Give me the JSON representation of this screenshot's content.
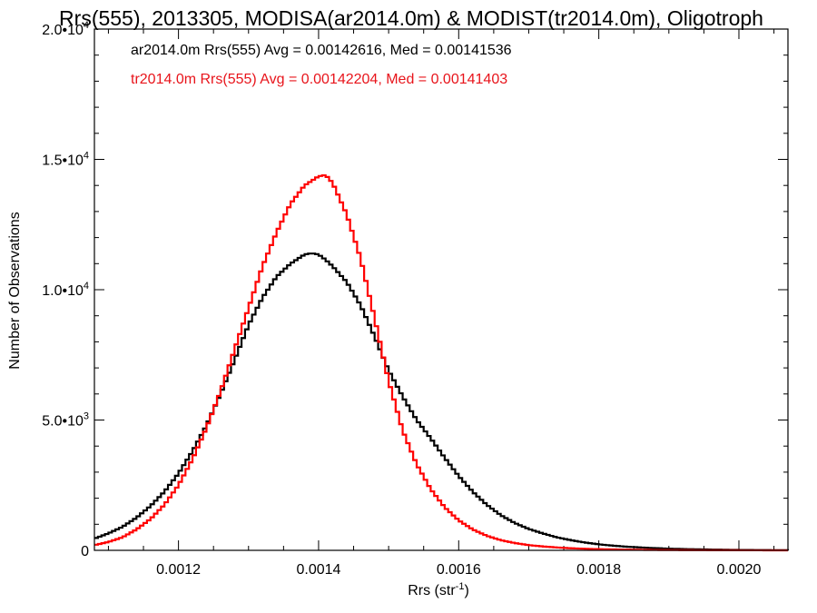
{
  "chart_data": {
    "type": "line",
    "title": "Rrs(555), 2013305, MODISA(ar2014.0m) & MODIST(tr2014.0m), Oligotroph",
    "xlabel_base": "Rrs (str",
    "xlabel_sup": "-1",
    "xlabel_close": ")",
    "ylabel": "Number of Observations",
    "xlim": [
      0.00108,
      0.00207
    ],
    "ylim": [
      0,
      20000
    ],
    "x_ticks": [
      {
        "value": 0.0012,
        "label": "0.0012"
      },
      {
        "value": 0.0014,
        "label": "0.0014"
      },
      {
        "value": 0.0016,
        "label": "0.0016"
      },
      {
        "value": 0.0018,
        "label": "0.0018"
      },
      {
        "value": 0.002,
        "label": "0.0020"
      }
    ],
    "y_ticks": [
      {
        "value": 0,
        "base": "0",
        "exp": ""
      },
      {
        "value": 5000,
        "base": "5.0•10",
        "exp": "3"
      },
      {
        "value": 10000,
        "base": "1.0•10",
        "exp": "4"
      },
      {
        "value": 15000,
        "base": "1.5•10",
        "exp": "4"
      },
      {
        "value": 20000,
        "base": "2.0•10",
        "exp": "4"
      }
    ],
    "series": [
      {
        "name": "ar2014.0m Rrs(555)",
        "color": "#000000",
        "x": [
          0.00108,
          0.0011,
          0.00112,
          0.00114,
          0.00116,
          0.00118,
          0.0012,
          0.00122,
          0.00124,
          0.00126,
          0.00128,
          0.0013,
          0.00132,
          0.00134,
          0.00136,
          0.00138,
          0.00139,
          0.0014,
          0.00141,
          0.00142,
          0.00144,
          0.00146,
          0.00148,
          0.0015,
          0.00152,
          0.00154,
          0.00156,
          0.00158,
          0.0016,
          0.00162,
          0.00164,
          0.00166,
          0.00168,
          0.0017,
          0.00172,
          0.00174,
          0.00176,
          0.00178,
          0.0018,
          0.00182,
          0.00184,
          0.00186,
          0.00188,
          0.0019,
          0.00192,
          0.00194,
          0.00196,
          0.00198,
          0.002,
          0.00202,
          0.00204,
          0.00207
        ],
        "y": [
          450,
          650,
          900,
          1250,
          1700,
          2250,
          2950,
          3800,
          4800,
          6000,
          7300,
          8650,
          9700,
          10500,
          11000,
          11350,
          11400,
          11350,
          11150,
          10900,
          10300,
          9400,
          8200,
          6900,
          5900,
          5000,
          4300,
          3550,
          2850,
          2250,
          1750,
          1350,
          1050,
          820,
          650,
          500,
          390,
          300,
          230,
          180,
          140,
          110,
          85,
          65,
          50,
          40,
          30,
          22,
          16,
          12,
          8,
          5
        ]
      },
      {
        "name": "tr2014.0m Rrs(555)",
        "color": "#ff0000",
        "x": [
          0.00108,
          0.0011,
          0.00112,
          0.00114,
          0.00116,
          0.00118,
          0.0012,
          0.00122,
          0.00124,
          0.00126,
          0.00128,
          0.0013,
          0.00132,
          0.00134,
          0.00136,
          0.00138,
          0.0014,
          0.00141,
          0.00142,
          0.00144,
          0.00146,
          0.00148,
          0.0015,
          0.00152,
          0.00154,
          0.00156,
          0.00158,
          0.0016,
          0.00162,
          0.00164,
          0.00166,
          0.00168,
          0.0017,
          0.00172,
          0.00174,
          0.00176,
          0.00178,
          0.0018,
          0.00182,
          0.00184,
          0.00186,
          0.00188,
          0.0019,
          0.00192,
          0.00194,
          0.00196,
          0.00198,
          0.002,
          0.00202,
          0.00204,
          0.00207
        ],
        "y": [
          200,
          320,
          500,
          800,
          1200,
          1750,
          2500,
          3500,
          4700,
          6100,
          7700,
          9300,
          10900,
          12200,
          13300,
          14000,
          14350,
          14400,
          14100,
          12900,
          11200,
          8900,
          6500,
          4600,
          3300,
          2350,
          1650,
          1150,
          800,
          560,
          390,
          280,
          200,
          150,
          110,
          80,
          60,
          45,
          35,
          27,
          20,
          15,
          12,
          9,
          7,
          5,
          4,
          3,
          2,
          1,
          1
        ]
      }
    ],
    "annotations": [
      {
        "text": "ar2014.0m Rrs(555) Avg = 0.00142616, Med = 0.00141536",
        "color": "#000000"
      },
      {
        "text": "tr2014.0m Rrs(555) Avg = 0.00142204, Med = 0.00141403",
        "color": "#e8141b"
      }
    ],
    "grid": false
  }
}
